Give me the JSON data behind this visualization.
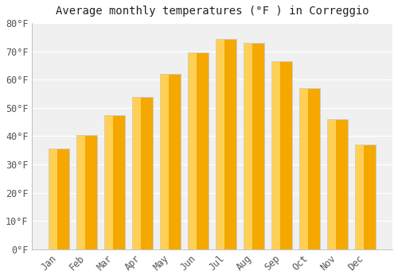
{
  "title": "Average monthly temperatures (°F ) in Correggio",
  "months": [
    "Jan",
    "Feb",
    "Mar",
    "Apr",
    "May",
    "Jun",
    "Jul",
    "Aug",
    "Sep",
    "Oct",
    "Nov",
    "Dec"
  ],
  "values": [
    35.5,
    40.5,
    47.5,
    54.0,
    62.0,
    69.5,
    74.5,
    73.0,
    66.5,
    57.0,
    46.0,
    37.0
  ],
  "bar_color_left": "#FFD055",
  "bar_color_right": "#F5A800",
  "bar_edge_color": "#cccccc",
  "ylim": [
    0,
    80
  ],
  "ytick_step": 10,
  "background_color": "#ffffff",
  "plot_bg_color": "#f0f0f0",
  "grid_color": "#ffffff",
  "title_fontsize": 10,
  "tick_fontsize": 8.5,
  "font_family": "monospace",
  "tick_color": "#555555",
  "title_color": "#222222"
}
